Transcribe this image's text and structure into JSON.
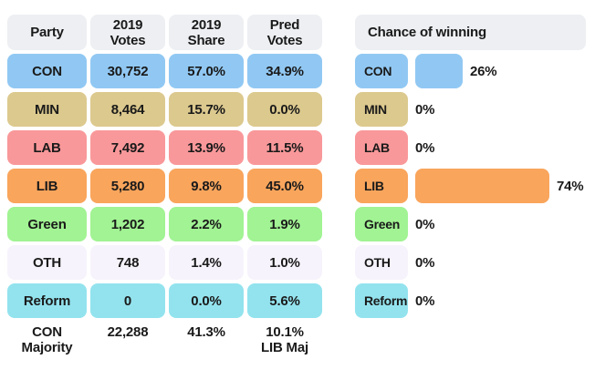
{
  "colors": {
    "header_bg": "#edeff2",
    "text": "#1a1a1a",
    "background": "#ffffff",
    "con": "#91c8f3",
    "min": "#dcc98e",
    "lab": "#f9989a",
    "lib": "#f9a55c",
    "green": "#a1f393",
    "oth": "#f7f3fc",
    "reform": "#93e3ee"
  },
  "table": {
    "headers": [
      {
        "line1": "Party",
        "line2": ""
      },
      {
        "line1": "2019",
        "line2": "Votes"
      },
      {
        "line1": "2019",
        "line2": "Share"
      },
      {
        "line1": "Pred",
        "line2": "Votes"
      }
    ],
    "rows": [
      {
        "party": "CON",
        "votes_2019": "30,752",
        "share_2019": "57.0%",
        "pred_votes": "34.9%",
        "color": "#91c8f3"
      },
      {
        "party": "MIN",
        "votes_2019": "8,464",
        "share_2019": "15.7%",
        "pred_votes": "0.0%",
        "color": "#dcc98e"
      },
      {
        "party": "LAB",
        "votes_2019": "7,492",
        "share_2019": "13.9%",
        "pred_votes": "11.5%",
        "color": "#f9989a"
      },
      {
        "party": "LIB",
        "votes_2019": "5,280",
        "share_2019": "9.8%",
        "pred_votes": "45.0%",
        "color": "#f9a55c"
      },
      {
        "party": "Green",
        "votes_2019": "1,202",
        "share_2019": "2.2%",
        "pred_votes": "1.9%",
        "color": "#a1f393"
      },
      {
        "party": "OTH",
        "votes_2019": "748",
        "share_2019": "1.4%",
        "pred_votes": "1.0%",
        "color": "#f7f3fc"
      },
      {
        "party": "Reform",
        "votes_2019": "0",
        "share_2019": "0.0%",
        "pred_votes": "5.6%",
        "color": "#93e3ee"
      }
    ],
    "footer": {
      "party_line1": "CON",
      "party_line2": "Majority",
      "votes": "22,288",
      "share": "41.3%",
      "pred_line1": "10.1%",
      "pred_line2": "LIB Maj"
    }
  },
  "chance_panel": {
    "title": "Chance of winning",
    "rows": [
      {
        "party": "CON",
        "value": 26,
        "label": "26%",
        "color": "#91c8f3"
      },
      {
        "party": "MIN",
        "value": 0,
        "label": "0%",
        "color": "#dcc98e"
      },
      {
        "party": "LAB",
        "value": 0,
        "label": "0%",
        "color": "#f9989a"
      },
      {
        "party": "LIB",
        "value": 74,
        "label": "74%",
        "color": "#f9a55c"
      },
      {
        "party": "Green",
        "value": 0,
        "label": "0%",
        "color": "#a1f393"
      },
      {
        "party": "OTH",
        "value": 0,
        "label": "0%",
        "color": "#f7f3fc"
      },
      {
        "party": "Reform",
        "value": 0,
        "label": "0%",
        "color": "#93e3ee"
      }
    ]
  },
  "chart_data": [
    {
      "type": "table",
      "columns": [
        "Party",
        "2019 Votes",
        "2019 Share",
        "Pred Votes"
      ],
      "rows": [
        [
          "CON",
          "30,752",
          "57.0%",
          "34.9%"
        ],
        [
          "MIN",
          "8,464",
          "15.7%",
          "0.0%"
        ],
        [
          "LAB",
          "7,492",
          "13.9%",
          "11.5%"
        ],
        [
          "LIB",
          "5,280",
          "9.8%",
          "45.0%"
        ],
        [
          "Green",
          "1,202",
          "2.2%",
          "1.9%"
        ],
        [
          "OTH",
          "748",
          "1.4%",
          "1.0%"
        ],
        [
          "Reform",
          "0",
          "0.0%",
          "5.6%"
        ]
      ],
      "footer": [
        "CON Majority",
        "22,288",
        "41.3%",
        "10.1% LIB Maj"
      ]
    },
    {
      "type": "bar",
      "title": "Chance of winning",
      "orientation": "horizontal",
      "categories": [
        "CON",
        "MIN",
        "LAB",
        "LIB",
        "Green",
        "OTH",
        "Reform"
      ],
      "values": [
        26,
        0,
        0,
        74,
        0,
        0,
        0
      ],
      "value_suffix": "%",
      "xlim": [
        0,
        100
      ],
      "grid": false,
      "legend": false
    }
  ]
}
